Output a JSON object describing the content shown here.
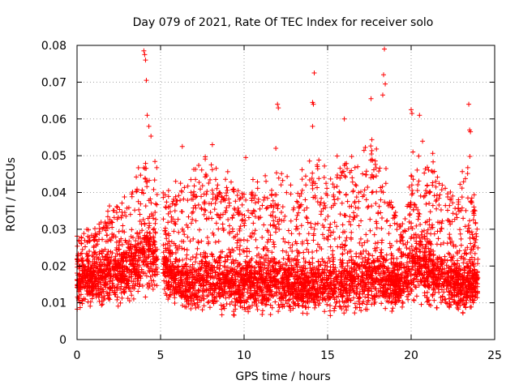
{
  "chart_data": {
    "type": "scatter",
    "title": "Day 079 of 2021, Rate Of TEC Index for receiver solo",
    "xlabel": "GPS time / hours",
    "ylabel": "ROTI / TECUs",
    "xlim": [
      0,
      25
    ],
    "ylim": [
      0,
      0.08
    ],
    "x_ticks": [
      0,
      5,
      10,
      15,
      20,
      25
    ],
    "y_ticks": [
      0,
      0.01,
      0.02,
      0.03,
      0.04,
      0.05,
      0.06,
      0.07,
      0.08
    ],
    "x_tick_labels": [
      "0",
      "5",
      "10",
      "15",
      "20",
      "25"
    ],
    "y_tick_labels": [
      "0",
      "0.01",
      "0.02",
      "0.03",
      "0.04",
      "0.05",
      "0.06",
      "0.07",
      "0.08"
    ],
    "grid": true,
    "marker": "plus",
    "color": "#ff0000",
    "envelope": [
      {
        "x": 0.0,
        "low": 0.006,
        "base": 0.015,
        "high": 0.03
      },
      {
        "x": 0.5,
        "low": 0.007,
        "base": 0.017,
        "high": 0.034
      },
      {
        "x": 1.0,
        "low": 0.007,
        "base": 0.016,
        "high": 0.03
      },
      {
        "x": 1.5,
        "low": 0.007,
        "base": 0.017,
        "high": 0.036
      },
      {
        "x": 2.0,
        "low": 0.007,
        "base": 0.017,
        "high": 0.038
      },
      {
        "x": 2.5,
        "low": 0.007,
        "base": 0.018,
        "high": 0.04
      },
      {
        "x": 3.0,
        "low": 0.008,
        "base": 0.019,
        "high": 0.043
      },
      {
        "x": 3.5,
        "low": 0.008,
        "base": 0.02,
        "high": 0.045
      },
      {
        "x": 4.0,
        "low": 0.008,
        "base": 0.024,
        "high": 0.054
      },
      {
        "x": 4.5,
        "low": 0.01,
        "base": 0.024,
        "high": 0.056
      },
      {
        "x": 5.3,
        "low": 0.008,
        "base": 0.019,
        "high": 0.044
      },
      {
        "x": 6.0,
        "low": 0.006,
        "base": 0.017,
        "high": 0.045
      },
      {
        "x": 7.0,
        "low": 0.005,
        "base": 0.016,
        "high": 0.047
      },
      {
        "x": 8.0,
        "low": 0.005,
        "base": 0.018,
        "high": 0.052
      },
      {
        "x": 9.0,
        "low": 0.005,
        "base": 0.017,
        "high": 0.046
      },
      {
        "x": 10.0,
        "low": 0.005,
        "base": 0.016,
        "high": 0.044
      },
      {
        "x": 11.0,
        "low": 0.005,
        "base": 0.016,
        "high": 0.044
      },
      {
        "x": 12.0,
        "low": 0.005,
        "base": 0.017,
        "high": 0.047
      },
      {
        "x": 13.0,
        "low": 0.005,
        "base": 0.016,
        "high": 0.043
      },
      {
        "x": 14.0,
        "low": 0.005,
        "base": 0.016,
        "high": 0.05
      },
      {
        "x": 15.0,
        "low": 0.005,
        "base": 0.016,
        "high": 0.048
      },
      {
        "x": 16.0,
        "low": 0.005,
        "base": 0.016,
        "high": 0.052
      },
      {
        "x": 17.0,
        "low": 0.005,
        "base": 0.017,
        "high": 0.05
      },
      {
        "x": 17.5,
        "low": 0.005,
        "base": 0.018,
        "high": 0.058
      },
      {
        "x": 18.0,
        "low": 0.006,
        "base": 0.018,
        "high": 0.06
      },
      {
        "x": 18.5,
        "low": 0.006,
        "base": 0.016,
        "high": 0.048
      },
      {
        "x": 19.0,
        "low": 0.006,
        "base": 0.015,
        "high": 0.04
      },
      {
        "x": 19.5,
        "low": 0.007,
        "base": 0.015,
        "high": 0.032
      },
      {
        "x": 20.0,
        "low": 0.008,
        "base": 0.02,
        "high": 0.05
      },
      {
        "x": 20.5,
        "low": 0.008,
        "base": 0.021,
        "high": 0.058
      },
      {
        "x": 21.0,
        "low": 0.007,
        "base": 0.019,
        "high": 0.052
      },
      {
        "x": 21.5,
        "low": 0.006,
        "base": 0.018,
        "high": 0.05
      },
      {
        "x": 22.0,
        "low": 0.006,
        "base": 0.017,
        "high": 0.046
      },
      {
        "x": 22.5,
        "low": 0.006,
        "base": 0.016,
        "high": 0.044
      },
      {
        "x": 23.0,
        "low": 0.005,
        "base": 0.016,
        "high": 0.046
      },
      {
        "x": 23.5,
        "low": 0.005,
        "base": 0.016,
        "high": 0.056
      },
      {
        "x": 24.0,
        "low": 0.007,
        "base": 0.016,
        "high": 0.03
      }
    ],
    "gaps": [
      [
        4.8,
        5.15
      ]
    ],
    "notable_points": [
      {
        "x": 4.0,
        "y": 0.0785
      },
      {
        "x": 4.05,
        "y": 0.0775
      },
      {
        "x": 4.1,
        "y": 0.076
      },
      {
        "x": 4.15,
        "y": 0.0705
      },
      {
        "x": 4.2,
        "y": 0.061
      },
      {
        "x": 4.3,
        "y": 0.058
      },
      {
        "x": 12.0,
        "y": 0.064
      },
      {
        "x": 12.05,
        "y": 0.063
      },
      {
        "x": 14.2,
        "y": 0.0725
      },
      {
        "x": 14.1,
        "y": 0.0645
      },
      {
        "x": 14.15,
        "y": 0.064
      },
      {
        "x": 14.1,
        "y": 0.058
      },
      {
        "x": 18.4,
        "y": 0.079
      },
      {
        "x": 18.35,
        "y": 0.072
      },
      {
        "x": 18.45,
        "y": 0.0695
      },
      {
        "x": 18.3,
        "y": 0.0665
      },
      {
        "x": 17.6,
        "y": 0.0655
      },
      {
        "x": 20.0,
        "y": 0.0625
      },
      {
        "x": 20.05,
        "y": 0.0615
      },
      {
        "x": 20.5,
        "y": 0.061
      },
      {
        "x": 23.45,
        "y": 0.064
      },
      {
        "x": 23.5,
        "y": 0.057
      },
      {
        "x": 23.55,
        "y": 0.0565
      },
      {
        "x": 16.0,
        "y": 0.06
      },
      {
        "x": 6.3,
        "y": 0.0525
      },
      {
        "x": 8.1,
        "y": 0.053
      },
      {
        "x": 10.1,
        "y": 0.0495
      },
      {
        "x": 11.9,
        "y": 0.052
      }
    ],
    "point_count": 5200
  }
}
